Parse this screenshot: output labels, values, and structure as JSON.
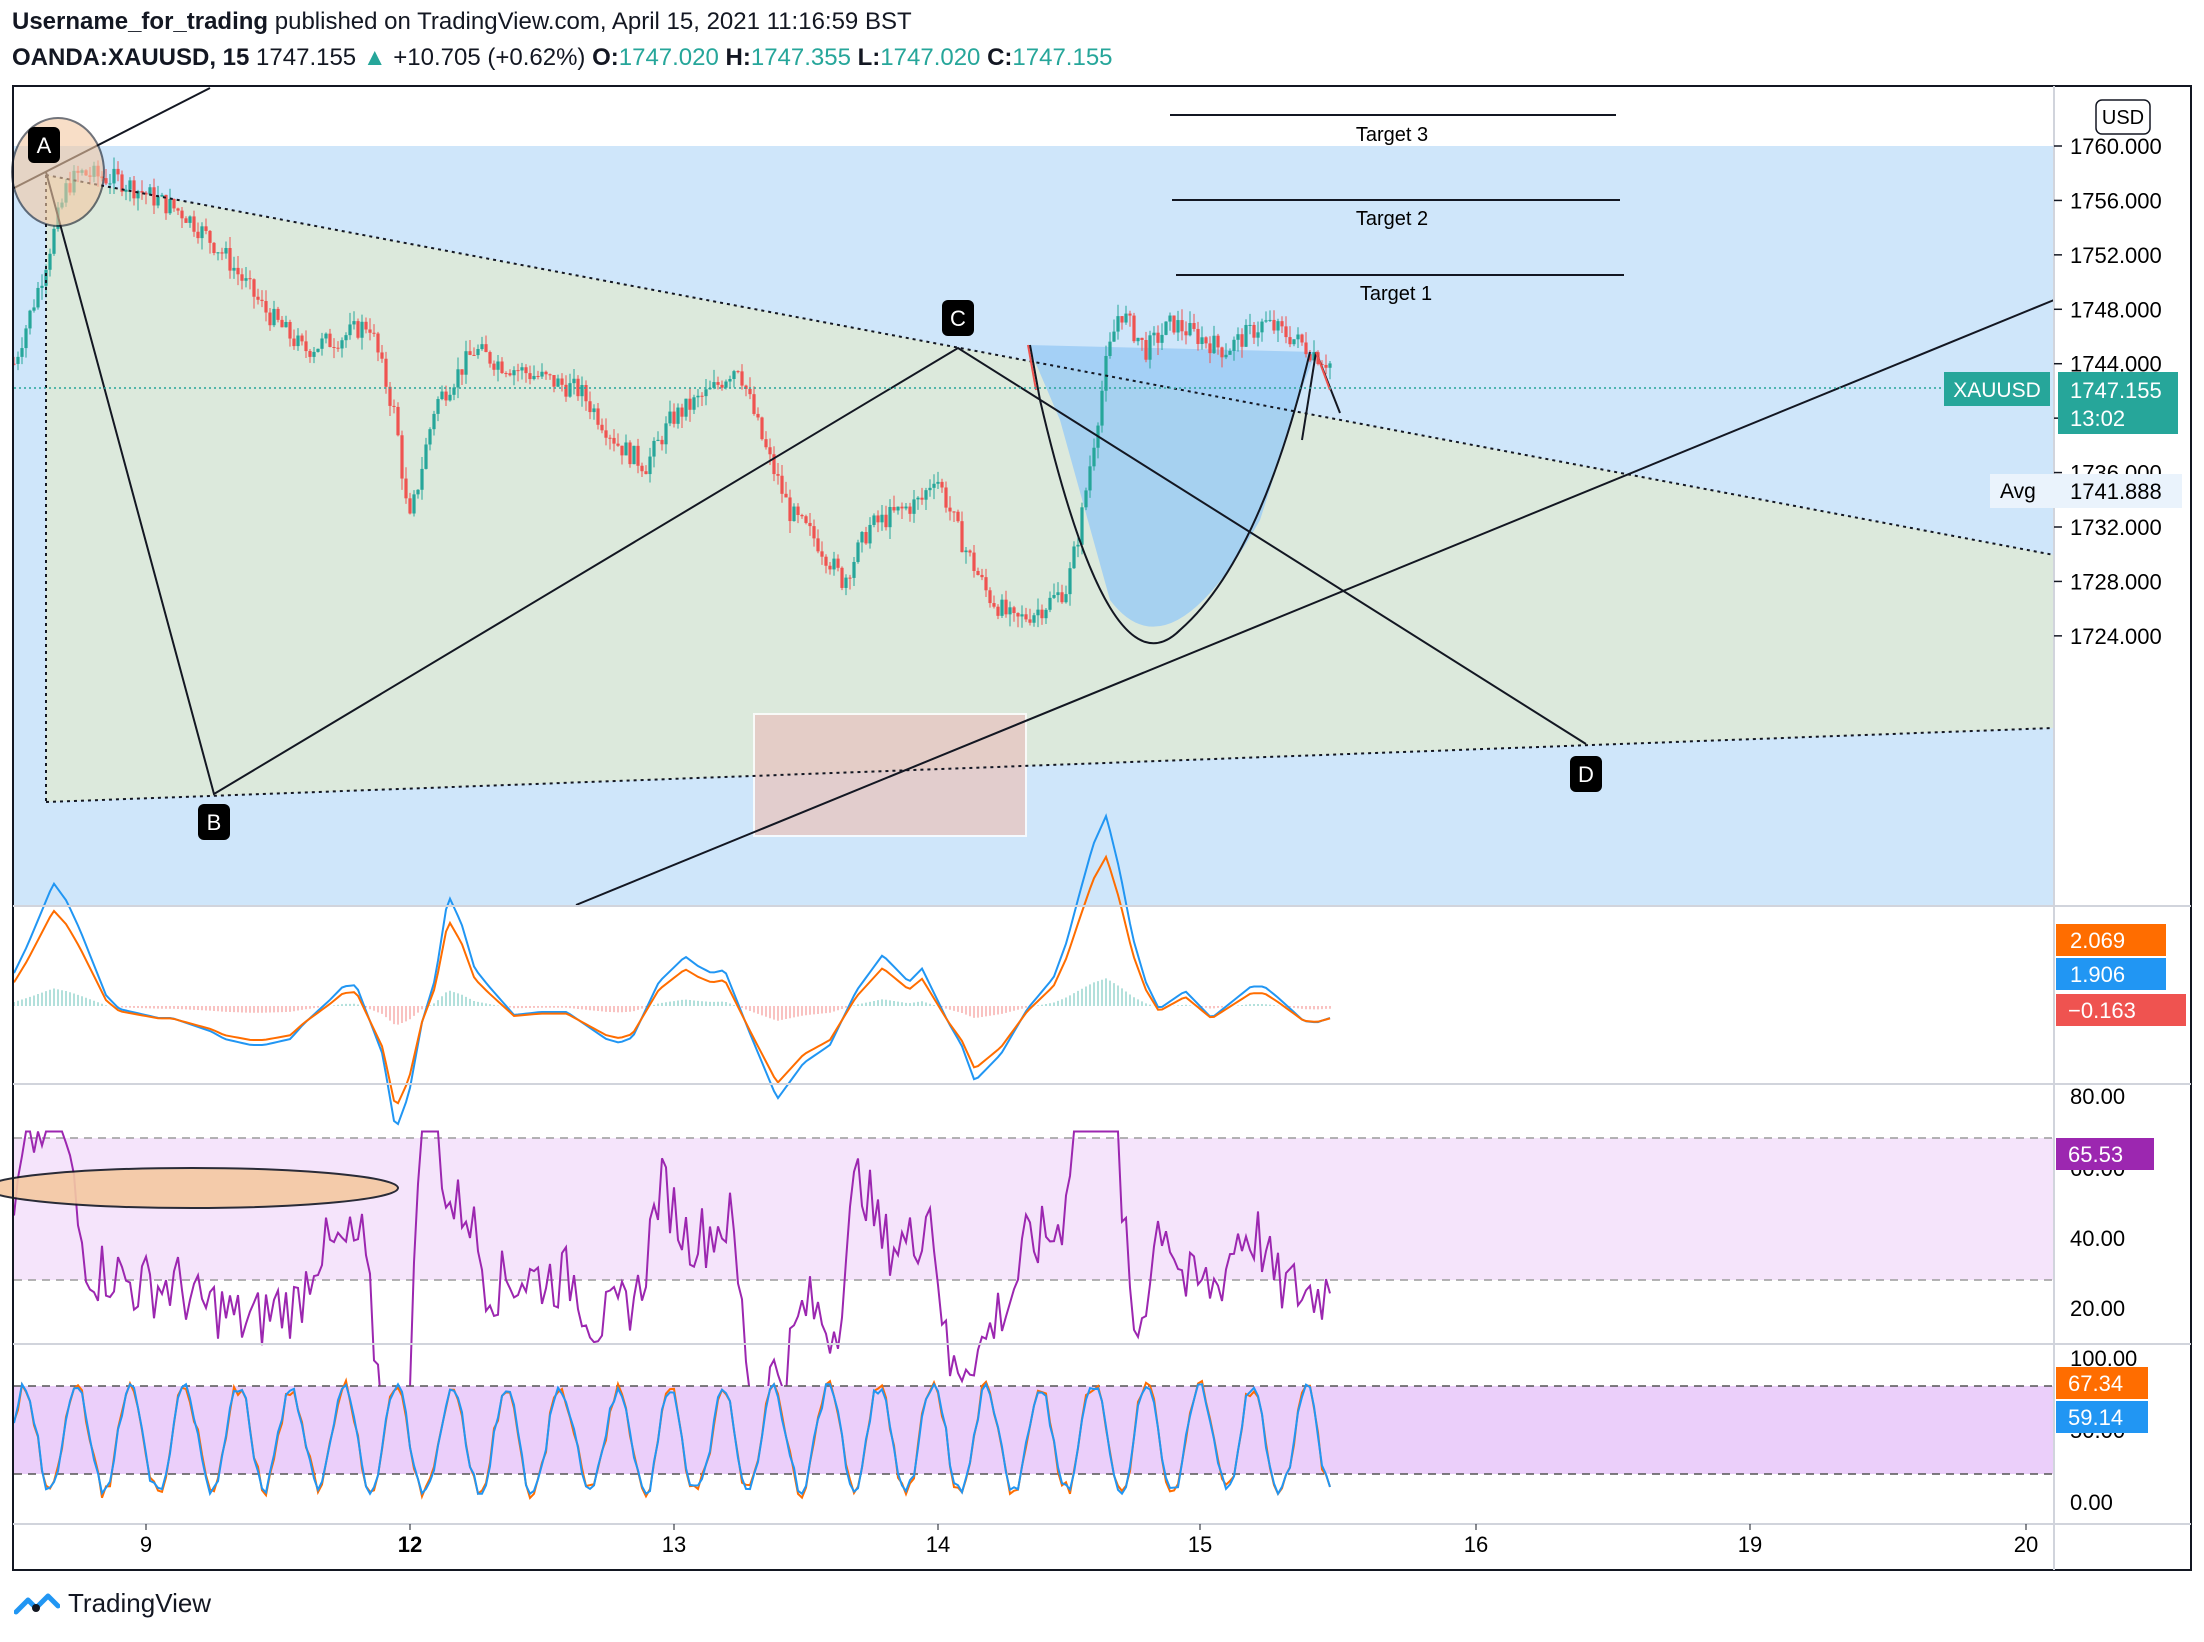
{
  "header": {
    "author": "Username_for_trading",
    "published_text": "published on TradingView.com, April 15, 2021 11:16:59 BST",
    "symbol": "OANDA:XAUUSD, 15",
    "last": "1747.155",
    "arrow": "▲",
    "change": "+10.705 (+0.62%)",
    "o_label": "O:",
    "o": "1747.020",
    "h_label": "H:",
    "h": "1747.355",
    "l_label": "L:",
    "l": "1747.020",
    "c_label": "C:",
    "c": "1747.155"
  },
  "colors": {
    "up": "#26a69a",
    "down": "#ef5350",
    "blue_zone": "#cfe6fa",
    "green_zone": "#dce9dc",
    "purple": "#9c27b0",
    "orange": "#ff6d00",
    "blue": "#2196f3"
  },
  "footer": {
    "brand": "TradingView",
    "logo_icon": "tradingview-logo-icon"
  },
  "chart_data": [
    {
      "type": "candlestick",
      "symbol": "XAUUSD",
      "currency": "USD",
      "interval": "15",
      "y_ticks": [
        "1760.000",
        "1756.000",
        "1752.000",
        "1748.000",
        "1744.000",
        "1740.000",
        "1736.000",
        "1732.000",
        "1728.000",
        "1724.000"
      ],
      "y_tick_values": [
        1760,
        1756,
        1752,
        1748,
        1744,
        1740,
        1736,
        1732,
        1728,
        1724
      ],
      "ylim": [
        1719.5,
        1764.5
      ],
      "x_ticks": [
        "9",
        "12",
        "13",
        "14",
        "15",
        "16",
        "19",
        "20"
      ],
      "x_ticks_bold": [
        "12"
      ],
      "last_price_label": "XAUUSD",
      "last_price": "1747.155",
      "countdown": "13:02",
      "avg_label": "Avg",
      "avg_price": "1741.888",
      "price_path": [
        [
          0,
          1744
        ],
        [
          0.02,
          1750
        ],
        [
          0.04,
          1757
        ],
        [
          0.05,
          1758
        ],
        [
          0.08,
          1757.5
        ],
        [
          0.1,
          1756.5
        ],
        [
          0.13,
          1755
        ],
        [
          0.16,
          1752
        ],
        [
          0.19,
          1748
        ],
        [
          0.22,
          1745
        ],
        [
          0.25,
          1746
        ],
        [
          0.27,
          1747
        ],
        [
          0.29,
          1740
        ],
        [
          0.3,
          1732
        ],
        [
          0.32,
          1741
        ],
        [
          0.35,
          1745
        ],
        [
          0.37,
          1744
        ],
        [
          0.4,
          1743
        ],
        [
          0.43,
          1742
        ],
        [
          0.46,
          1738
        ],
        [
          0.48,
          1736.5
        ],
        [
          0.5,
          1740
        ],
        [
          0.53,
          1742
        ],
        [
          0.55,
          1744
        ],
        [
          0.57,
          1738
        ],
        [
          0.59,
          1733
        ],
        [
          0.61,
          1731
        ],
        [
          0.63,
          1728
        ],
        [
          0.65,
          1732
        ],
        [
          0.67,
          1733
        ],
        [
          0.69,
          1734
        ],
        [
          0.7,
          1736
        ],
        [
          0.72,
          1731
        ],
        [
          0.74,
          1727
        ],
        [
          0.76,
          1725
        ],
        [
          0.78,
          1726
        ],
        [
          0.8,
          1727.5
        ],
        [
          0.81,
          1732
        ],
        [
          0.83,
          1744
        ],
        [
          0.84,
          1748
        ],
        [
          0.86,
          1745
        ],
        [
          0.88,
          1747
        ],
        [
          0.9,
          1746
        ],
        [
          0.92,
          1745
        ],
        [
          0.95,
          1747
        ],
        [
          0.97,
          1746
        ],
        [
          1.0,
          1744
        ]
      ],
      "annotations": {
        "points": [
          "A",
          "B",
          "C",
          "D"
        ],
        "targets": [
          "Target 3",
          "Target 2",
          "Target 1"
        ]
      }
    },
    {
      "type": "line",
      "name": "MACD",
      "value_labels": [
        "2.069",
        "1.906",
        "−0.163"
      ]
    },
    {
      "type": "line",
      "name": "RSI",
      "y_ticks": [
        "80.00",
        "60.00",
        "40.00",
        "20.00"
      ],
      "y_tick_values": [
        80,
        60,
        40,
        20
      ],
      "ylim": [
        10,
        85
      ],
      "band": [
        30,
        70
      ],
      "value_label": "65.53",
      "value": 65.53
    },
    {
      "type": "line",
      "name": "Stoch RSI",
      "y_ticks": [
        "100.00",
        "50.00",
        "0.00"
      ],
      "y_tick_values": [
        100,
        50,
        0
      ],
      "ylim": [
        -8,
        108
      ],
      "band": [
        20,
        80
      ],
      "value_labels": [
        "67.34",
        "59.14"
      ]
    }
  ]
}
